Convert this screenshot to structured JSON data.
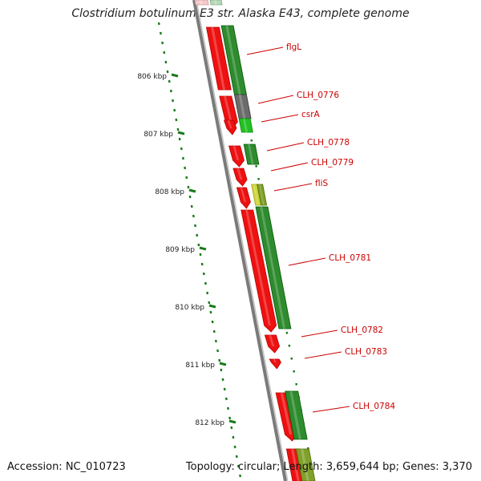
{
  "title": "Clostridium botulinum E3 str. Alaska E43, complete genome",
  "footer": {
    "accession": "Accession: NC_010723",
    "summary": "Topology: circular; Length: 3,659,644 bp; Genes: 3,370"
  },
  "ticks": [
    {
      "label": "806 kbp"
    },
    {
      "label": "807 kbp"
    },
    {
      "label": "808 kbp"
    },
    {
      "label": "809 kbp"
    },
    {
      "label": "810 kbp"
    },
    {
      "label": "811 kbp"
    },
    {
      "label": "812 kbp"
    }
  ],
  "genes": [
    {
      "name": "flgL",
      "color": "#2e8b2e",
      "strand": "+"
    },
    {
      "name": "CLH_0776",
      "color": "#6b6b6b",
      "strand": "+"
    },
    {
      "name": "csrA",
      "color": "#22c022",
      "strand": "+"
    },
    {
      "name": "CLH_0778",
      "color": "#2e8b2e",
      "strand": "+"
    },
    {
      "name": "CLH_0779",
      "color": "#ee1111",
      "strand": "-"
    },
    {
      "name": "fliS",
      "color": "#b8c43a",
      "strand": "+"
    },
    {
      "name": "CLH_0781",
      "color": "#2e8b2e",
      "strand": "+"
    },
    {
      "name": "CLH_0782",
      "color": "#ee1111",
      "strand": "-"
    },
    {
      "name": "CLH_0783",
      "color": "#ee1111",
      "strand": "-"
    },
    {
      "name": "CLH_0784",
      "color": "#2e8b2e",
      "strand": "+"
    }
  ],
  "colors": {
    "backbone": "#7a7a7a",
    "reverse_cds": "#ee1111",
    "forward_cds": "#2e8b2e",
    "label": "#cc0000",
    "tick": "#1a7a1a"
  }
}
